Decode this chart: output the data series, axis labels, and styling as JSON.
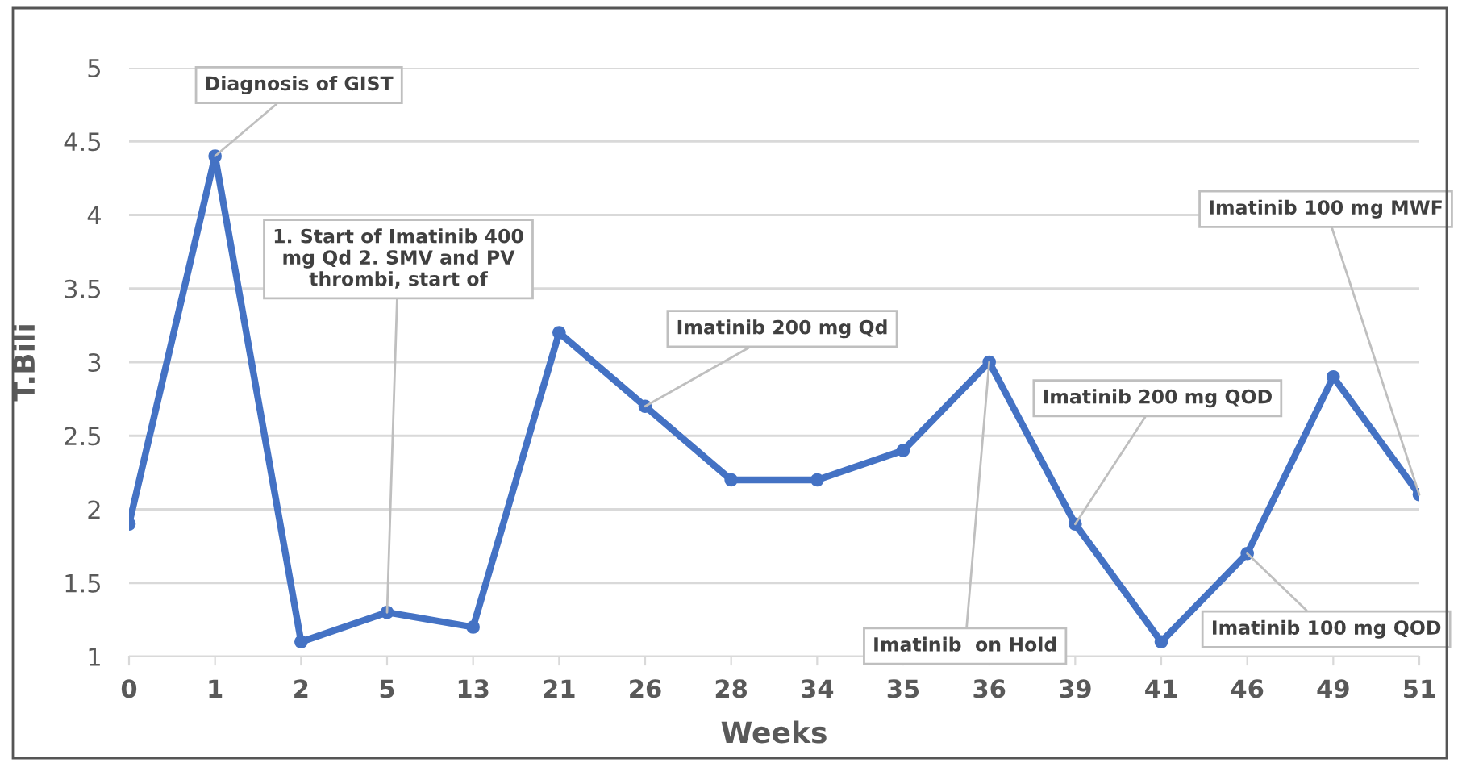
{
  "chart_data": {
    "type": "line",
    "xlabel": "Weeks",
    "ylabel": "T.Bili",
    "categories": [
      "0",
      "1",
      "2",
      "5",
      "13",
      "21",
      "26",
      "28",
      "34",
      "35",
      "36",
      "39",
      "41",
      "46",
      "49",
      "51"
    ],
    "series": [
      {
        "color": "#4472c4",
        "values": [
          1.9,
          4.4,
          1.1,
          1.3,
          1.2,
          3.2,
          2.7,
          2.2,
          2.2,
          2.4,
          3.0,
          1.9,
          1.1,
          1.7,
          2.9,
          2.1
        ]
      }
    ],
    "ylim": [
      1,
      5
    ],
    "yticks": [
      1,
      1.5,
      2,
      2.5,
      3,
      3.5,
      4,
      4.5,
      5
    ],
    "grid": "y",
    "legend": false,
    "marker": "circle",
    "line_style": "solid",
    "annotations": [
      {
        "text": "Diagnosis of GIST",
        "x": "1",
        "y": 4.4
      },
      {
        "text": "1. Start of Imatinib 400\nmg Qd 2. SMV and PV\nthrombi, start of",
        "x": "5",
        "y": 1.3
      },
      {
        "text": "Imatinib 200 mg Qd",
        "x": "26",
        "y": 2.7
      },
      {
        "text": "Imatinib  on Hold",
        "x": "36",
        "y": 3.0
      },
      {
        "text": "Imatinib 200 mg QOD",
        "x": "39",
        "y": 1.9
      },
      {
        "text": "Imatinib 100 mg QOD",
        "x": "46",
        "y": 1.7
      },
      {
        "text": "Imatinib 100 mg MWF",
        "x": "51",
        "y": 2.1
      }
    ]
  }
}
